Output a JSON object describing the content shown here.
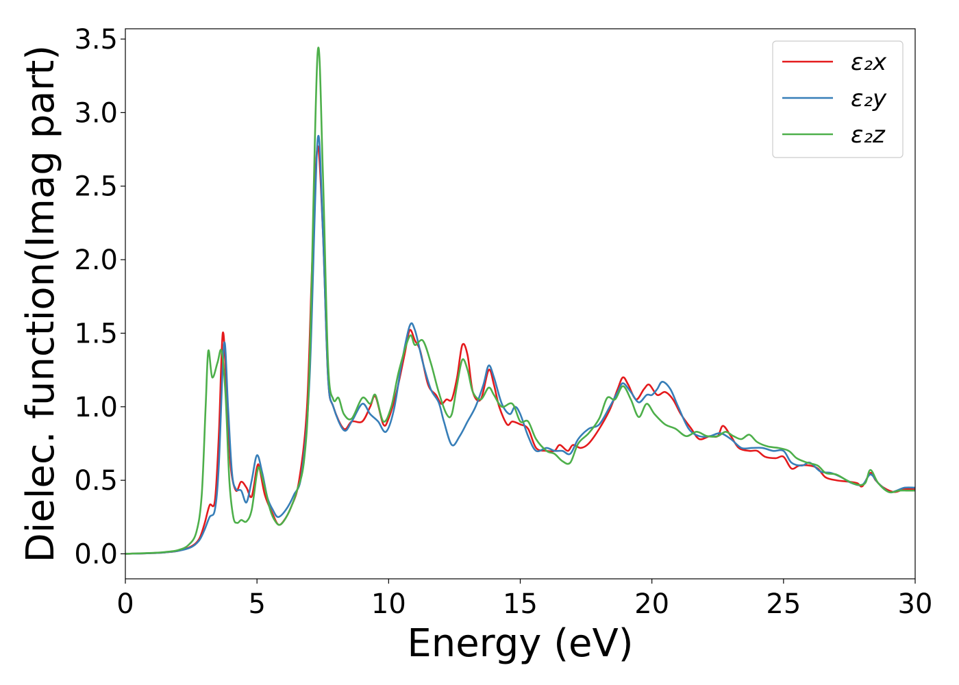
{
  "chart_data": {
    "type": "line",
    "xlabel": "Energy (eV)",
    "ylabel": "Dielec. function(Imag part)",
    "xlim": [
      0,
      30
    ],
    "ylim": [
      -0.17,
      3.57
    ],
    "xticks": [
      0,
      5,
      10,
      15,
      20,
      25,
      30
    ],
    "xtick_labels": [
      "0",
      "5",
      "10",
      "15",
      "20",
      "25",
      "30"
    ],
    "yticks": [
      0.0,
      0.5,
      1.0,
      1.5,
      2.0,
      2.5,
      3.0,
      3.5
    ],
    "ytick_labels": [
      "0.0",
      "0.5",
      "1.0",
      "1.5",
      "2.0",
      "2.5",
      "3.0",
      "3.5"
    ],
    "grid": false,
    "legend_position": "top-right",
    "series": [
      {
        "name": "ε₂x",
        "color": "#e41a1c",
        "points": [
          [
            0,
            0
          ],
          [
            1,
            0.005
          ],
          [
            1.5,
            0.01
          ],
          [
            2,
            0.02
          ],
          [
            2.5,
            0.05
          ],
          [
            2.8,
            0.1
          ],
          [
            3.0,
            0.2
          ],
          [
            3.2,
            0.33
          ],
          [
            3.4,
            0.36
          ],
          [
            3.55,
            0.8
          ],
          [
            3.7,
            1.5
          ],
          [
            3.85,
            1.1
          ],
          [
            4.0,
            0.6
          ],
          [
            4.2,
            0.43
          ],
          [
            4.4,
            0.49
          ],
          [
            4.6,
            0.45
          ],
          [
            4.8,
            0.39
          ],
          [
            5.0,
            0.59
          ],
          [
            5.1,
            0.58
          ],
          [
            5.3,
            0.4
          ],
          [
            5.6,
            0.27
          ],
          [
            5.8,
            0.2
          ],
          [
            6.0,
            0.22
          ],
          [
            6.3,
            0.32
          ],
          [
            6.6,
            0.5
          ],
          [
            6.9,
            1.0
          ],
          [
            7.1,
            2.0
          ],
          [
            7.3,
            2.77
          ],
          [
            7.5,
            2.2
          ],
          [
            7.7,
            1.2
          ],
          [
            7.9,
            1.0
          ],
          [
            8.3,
            0.85
          ],
          [
            8.6,
            0.9
          ],
          [
            9.0,
            0.9
          ],
          [
            9.3,
            1.0
          ],
          [
            9.5,
            1.07
          ],
          [
            9.8,
            0.88
          ],
          [
            10.0,
            0.92
          ],
          [
            10.3,
            1.1
          ],
          [
            10.6,
            1.35
          ],
          [
            10.8,
            1.52
          ],
          [
            11.0,
            1.45
          ],
          [
            11.2,
            1.38
          ],
          [
            11.5,
            1.15
          ],
          [
            11.8,
            1.08
          ],
          [
            12.0,
            1.02
          ],
          [
            12.2,
            1.05
          ],
          [
            12.4,
            1.05
          ],
          [
            12.6,
            1.2
          ],
          [
            12.8,
            1.42
          ],
          [
            13.0,
            1.35
          ],
          [
            13.2,
            1.1
          ],
          [
            13.5,
            1.05
          ],
          [
            13.8,
            1.25
          ],
          [
            14.0,
            1.15
          ],
          [
            14.2,
            1.0
          ],
          [
            14.5,
            0.88
          ],
          [
            14.7,
            0.9
          ],
          [
            15.0,
            0.88
          ],
          [
            15.3,
            0.85
          ],
          [
            15.6,
            0.72
          ],
          [
            16.0,
            0.7
          ],
          [
            16.3,
            0.7
          ],
          [
            16.5,
            0.74
          ],
          [
            16.8,
            0.7
          ],
          [
            17.0,
            0.74
          ],
          [
            17.3,
            0.72
          ],
          [
            17.6,
            0.75
          ],
          [
            18.0,
            0.85
          ],
          [
            18.4,
            0.98
          ],
          [
            18.7,
            1.12
          ],
          [
            18.9,
            1.2
          ],
          [
            19.1,
            1.15
          ],
          [
            19.4,
            1.05
          ],
          [
            19.7,
            1.12
          ],
          [
            19.9,
            1.15
          ],
          [
            20.2,
            1.08
          ],
          [
            20.5,
            1.1
          ],
          [
            20.8,
            1.05
          ],
          [
            21.1,
            0.95
          ],
          [
            21.5,
            0.85
          ],
          [
            21.8,
            0.78
          ],
          [
            22.2,
            0.8
          ],
          [
            22.5,
            0.8
          ],
          [
            22.7,
            0.87
          ],
          [
            23.0,
            0.8
          ],
          [
            23.3,
            0.72
          ],
          [
            23.7,
            0.7
          ],
          [
            24.0,
            0.7
          ],
          [
            24.3,
            0.66
          ],
          [
            24.7,
            0.65
          ],
          [
            25.0,
            0.66
          ],
          [
            25.3,
            0.58
          ],
          [
            25.6,
            0.6
          ],
          [
            26.0,
            0.6
          ],
          [
            26.3,
            0.58
          ],
          [
            26.6,
            0.52
          ],
          [
            27.0,
            0.5
          ],
          [
            27.5,
            0.49
          ],
          [
            27.8,
            0.48
          ],
          [
            28.0,
            0.46
          ],
          [
            28.3,
            0.55
          ],
          [
            28.5,
            0.5
          ],
          [
            28.8,
            0.45
          ],
          [
            29.2,
            0.42
          ],
          [
            29.6,
            0.44
          ],
          [
            30,
            0.44
          ]
        ]
      },
      {
        "name": "ε₂y",
        "color": "#377eb8",
        "points": [
          [
            0,
            0
          ],
          [
            1,
            0.005
          ],
          [
            1.5,
            0.01
          ],
          [
            2,
            0.02
          ],
          [
            2.5,
            0.045
          ],
          [
            2.8,
            0.09
          ],
          [
            3.0,
            0.16
          ],
          [
            3.2,
            0.25
          ],
          [
            3.4,
            0.3
          ],
          [
            3.55,
            0.6
          ],
          [
            3.75,
            1.43
          ],
          [
            3.9,
            1.0
          ],
          [
            4.05,
            0.55
          ],
          [
            4.2,
            0.44
          ],
          [
            4.4,
            0.43
          ],
          [
            4.6,
            0.35
          ],
          [
            4.8,
            0.5
          ],
          [
            5.0,
            0.67
          ],
          [
            5.2,
            0.55
          ],
          [
            5.4,
            0.38
          ],
          [
            5.6,
            0.3
          ],
          [
            5.8,
            0.25
          ],
          [
            6.1,
            0.3
          ],
          [
            6.4,
            0.4
          ],
          [
            6.7,
            0.55
          ],
          [
            7.0,
            1.2
          ],
          [
            7.3,
            2.81
          ],
          [
            7.5,
            2.2
          ],
          [
            7.7,
            1.2
          ],
          [
            7.9,
            1.0
          ],
          [
            8.3,
            0.84
          ],
          [
            8.6,
            0.9
          ],
          [
            9.0,
            1.02
          ],
          [
            9.3,
            0.95
          ],
          [
            9.6,
            0.9
          ],
          [
            9.9,
            0.83
          ],
          [
            10.2,
            0.98
          ],
          [
            10.5,
            1.3
          ],
          [
            10.8,
            1.55
          ],
          [
            11.0,
            1.52
          ],
          [
            11.3,
            1.3
          ],
          [
            11.6,
            1.12
          ],
          [
            11.9,
            1.03
          ],
          [
            12.1,
            0.9
          ],
          [
            12.4,
            0.74
          ],
          [
            12.7,
            0.8
          ],
          [
            13.0,
            0.9
          ],
          [
            13.3,
            1.0
          ],
          [
            13.6,
            1.15
          ],
          [
            13.8,
            1.28
          ],
          [
            14.0,
            1.2
          ],
          [
            14.3,
            1.02
          ],
          [
            14.6,
            0.95
          ],
          [
            14.8,
            1.0
          ],
          [
            15.0,
            0.95
          ],
          [
            15.3,
            0.8
          ],
          [
            15.6,
            0.7
          ],
          [
            16.0,
            0.72
          ],
          [
            16.3,
            0.7
          ],
          [
            16.6,
            0.7
          ],
          [
            16.9,
            0.68
          ],
          [
            17.2,
            0.78
          ],
          [
            17.6,
            0.85
          ],
          [
            18.0,
            0.88
          ],
          [
            18.4,
            1.0
          ],
          [
            18.7,
            1.1
          ],
          [
            18.9,
            1.16
          ],
          [
            19.2,
            1.1
          ],
          [
            19.5,
            1.03
          ],
          [
            19.8,
            1.08
          ],
          [
            20.0,
            1.08
          ],
          [
            20.2,
            1.12
          ],
          [
            20.4,
            1.17
          ],
          [
            20.7,
            1.12
          ],
          [
            21.0,
            1.0
          ],
          [
            21.4,
            0.85
          ],
          [
            21.8,
            0.8
          ],
          [
            22.2,
            0.8
          ],
          [
            22.6,
            0.82
          ],
          [
            23.0,
            0.78
          ],
          [
            23.4,
            0.72
          ],
          [
            23.8,
            0.72
          ],
          [
            24.2,
            0.72
          ],
          [
            24.6,
            0.7
          ],
          [
            25.0,
            0.7
          ],
          [
            25.3,
            0.62
          ],
          [
            25.7,
            0.6
          ],
          [
            26.0,
            0.62
          ],
          [
            26.4,
            0.56
          ],
          [
            26.8,
            0.55
          ],
          [
            27.2,
            0.52
          ],
          [
            27.6,
            0.48
          ],
          [
            28.0,
            0.47
          ],
          [
            28.3,
            0.54
          ],
          [
            28.6,
            0.48
          ],
          [
            29.0,
            0.42
          ],
          [
            29.3,
            0.43
          ],
          [
            29.6,
            0.45
          ],
          [
            30,
            0.45
          ]
        ]
      },
      {
        "name": "ε₂z",
        "color": "#4daf4a",
        "points": [
          [
            0,
            0
          ],
          [
            1,
            0.006
          ],
          [
            1.5,
            0.012
          ],
          [
            2,
            0.025
          ],
          [
            2.4,
            0.06
          ],
          [
            2.7,
            0.15
          ],
          [
            2.9,
            0.4
          ],
          [
            3.05,
            1.0
          ],
          [
            3.15,
            1.38
          ],
          [
            3.3,
            1.2
          ],
          [
            3.5,
            1.3
          ],
          [
            3.65,
            1.38
          ],
          [
            3.8,
            1.1
          ],
          [
            3.95,
            0.5
          ],
          [
            4.1,
            0.25
          ],
          [
            4.25,
            0.21
          ],
          [
            4.4,
            0.23
          ],
          [
            4.6,
            0.22
          ],
          [
            4.8,
            0.3
          ],
          [
            5.0,
            0.55
          ],
          [
            5.1,
            0.58
          ],
          [
            5.3,
            0.45
          ],
          [
            5.5,
            0.3
          ],
          [
            5.7,
            0.22
          ],
          [
            5.9,
            0.2
          ],
          [
            6.2,
            0.28
          ],
          [
            6.5,
            0.42
          ],
          [
            6.8,
            0.65
          ],
          [
            7.0,
            1.3
          ],
          [
            7.3,
            3.4
          ],
          [
            7.5,
            2.6
          ],
          [
            7.7,
            1.3
          ],
          [
            7.9,
            1.05
          ],
          [
            8.1,
            1.06
          ],
          [
            8.3,
            0.95
          ],
          [
            8.6,
            0.92
          ],
          [
            9.0,
            1.06
          ],
          [
            9.3,
            1.02
          ],
          [
            9.5,
            1.08
          ],
          [
            9.8,
            0.9
          ],
          [
            10.1,
            1.0
          ],
          [
            10.4,
            1.25
          ],
          [
            10.8,
            1.48
          ],
          [
            11.0,
            1.42
          ],
          [
            11.3,
            1.45
          ],
          [
            11.6,
            1.3
          ],
          [
            11.9,
            1.1
          ],
          [
            12.2,
            0.95
          ],
          [
            12.4,
            0.95
          ],
          [
            12.6,
            1.15
          ],
          [
            12.8,
            1.32
          ],
          [
            13.0,
            1.25
          ],
          [
            13.2,
            1.1
          ],
          [
            13.5,
            1.05
          ],
          [
            13.8,
            1.13
          ],
          [
            14.0,
            1.08
          ],
          [
            14.3,
            1.0
          ],
          [
            14.7,
            1.02
          ],
          [
            15.0,
            0.9
          ],
          [
            15.3,
            0.9
          ],
          [
            15.6,
            0.78
          ],
          [
            16.0,
            0.7
          ],
          [
            16.3,
            0.68
          ],
          [
            16.6,
            0.63
          ],
          [
            16.9,
            0.62
          ],
          [
            17.2,
            0.75
          ],
          [
            17.6,
            0.82
          ],
          [
            18.0,
            0.92
          ],
          [
            18.3,
            1.06
          ],
          [
            18.6,
            1.05
          ],
          [
            18.9,
            1.14
          ],
          [
            19.2,
            1.05
          ],
          [
            19.5,
            0.93
          ],
          [
            19.8,
            1.02
          ],
          [
            20.1,
            0.95
          ],
          [
            20.5,
            0.88
          ],
          [
            20.9,
            0.85
          ],
          [
            21.3,
            0.8
          ],
          [
            21.7,
            0.83
          ],
          [
            22.1,
            0.8
          ],
          [
            22.5,
            0.8
          ],
          [
            22.8,
            0.83
          ],
          [
            23.1,
            0.8
          ],
          [
            23.4,
            0.78
          ],
          [
            23.7,
            0.81
          ],
          [
            24.0,
            0.76
          ],
          [
            24.4,
            0.73
          ],
          [
            24.8,
            0.72
          ],
          [
            25.2,
            0.7
          ],
          [
            25.5,
            0.65
          ],
          [
            25.9,
            0.62
          ],
          [
            26.3,
            0.6
          ],
          [
            26.6,
            0.55
          ],
          [
            27.0,
            0.54
          ],
          [
            27.4,
            0.5
          ],
          [
            27.8,
            0.47
          ],
          [
            28.1,
            0.48
          ],
          [
            28.3,
            0.57
          ],
          [
            28.6,
            0.48
          ],
          [
            29.0,
            0.42
          ],
          [
            29.4,
            0.43
          ],
          [
            29.7,
            0.43
          ],
          [
            30,
            0.43
          ]
        ]
      }
    ]
  }
}
